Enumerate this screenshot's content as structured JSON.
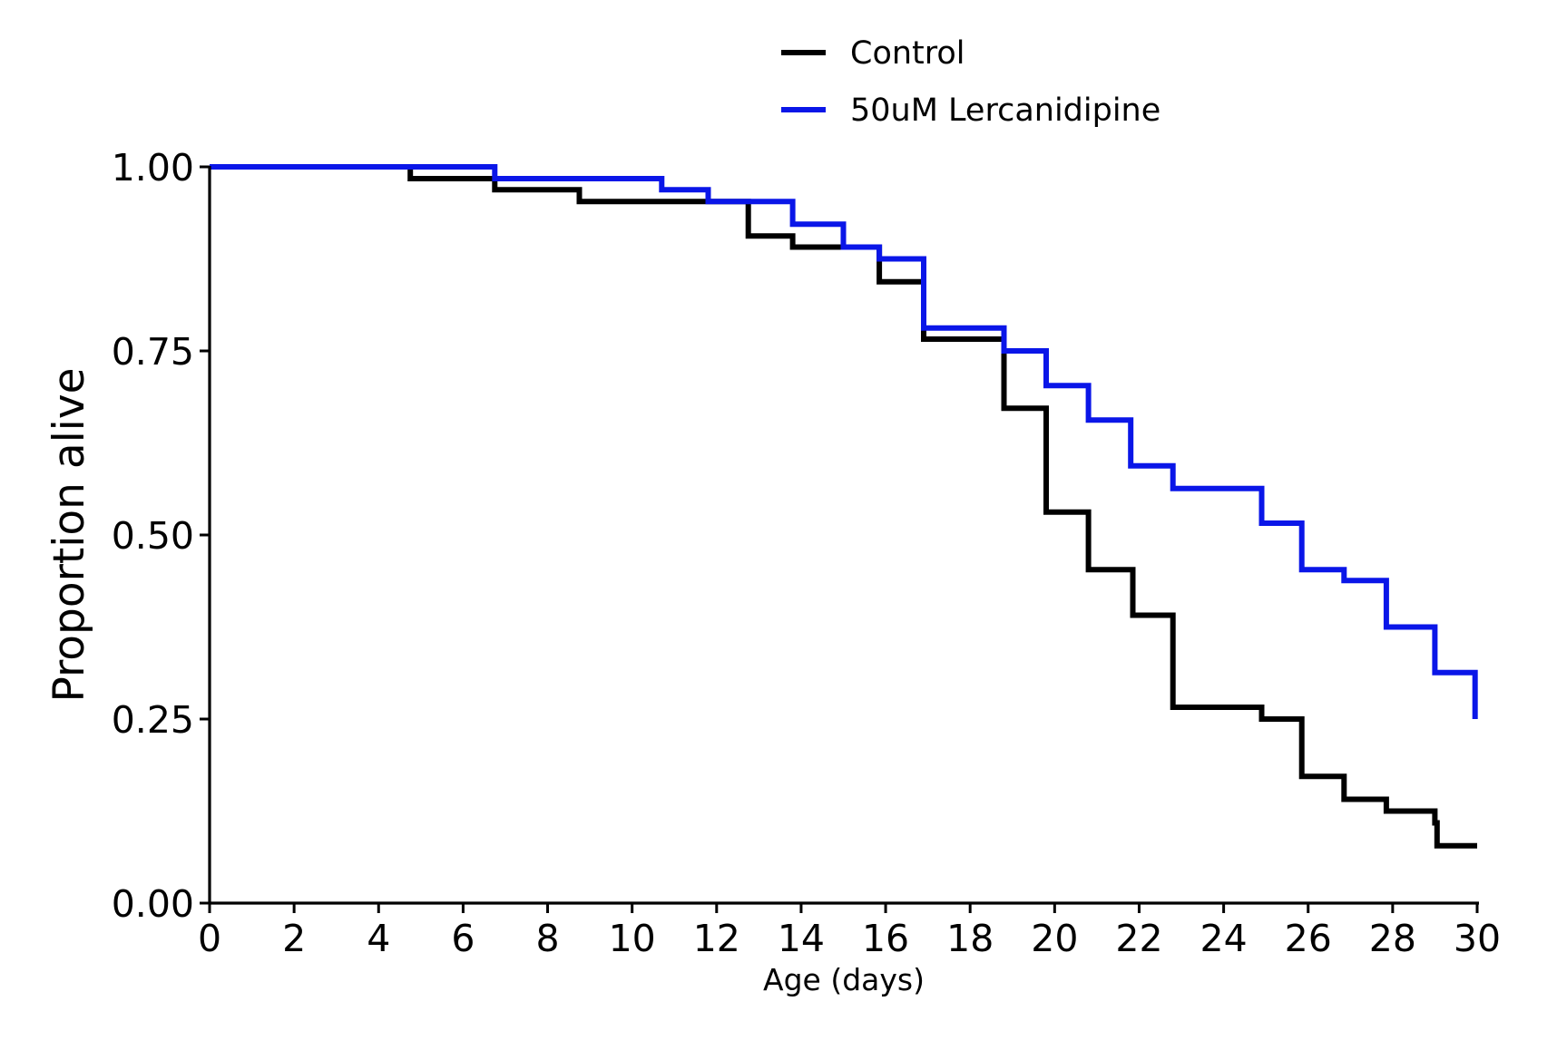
{
  "chart_data": {
    "type": "line",
    "step": "post",
    "xlabel": "Age (days)",
    "ylabel": "Proportion alive",
    "xlim": [
      0,
      30
    ],
    "ylim": [
      0,
      1
    ],
    "xticks": [
      0,
      2,
      4,
      6,
      8,
      10,
      12,
      14,
      16,
      18,
      20,
      22,
      24,
      26,
      28,
      30
    ],
    "xtick_labels": [
      "0",
      "2",
      "4",
      "6",
      "8",
      "10",
      "12",
      "14",
      "16",
      "18",
      "20",
      "22",
      "24",
      "26",
      "28",
      "30"
    ],
    "yticks": [
      0,
      0.25,
      0.5,
      0.75,
      1.0
    ],
    "ytick_labels": [
      "0.00",
      "0.25",
      "0.50",
      "0.75",
      "1.00"
    ],
    "grid": false,
    "legend_position": "top-center",
    "series": [
      {
        "name": "Control",
        "color": "#000000",
        "x": [
          0,
          4.75,
          6.75,
          8.75,
          12.75,
          13.8,
          15.85,
          16.9,
          18.8,
          19.8,
          20.8,
          21.85,
          22.8,
          24.9,
          25.85,
          26.85,
          27.85,
          29.0,
          29.05,
          30.0
        ],
        "y": [
          1.0,
          0.984,
          0.969,
          0.953,
          0.906,
          0.891,
          0.844,
          0.766,
          0.672,
          0.531,
          0.453,
          0.391,
          0.266,
          0.25,
          0.172,
          0.141,
          0.125,
          0.109,
          0.078,
          0.078
        ]
      },
      {
        "name": "50uM Lercanidipine",
        "color": "#0a16e8",
        "x": [
          0,
          6.75,
          10.7,
          11.8,
          13.8,
          15.0,
          15.85,
          16.9,
          18.8,
          19.8,
          20.8,
          21.8,
          22.8,
          24.9,
          25.85,
          26.85,
          27.85,
          29.0,
          29.95
        ],
        "y": [
          1.0,
          0.984,
          0.969,
          0.953,
          0.922,
          0.891,
          0.875,
          0.781,
          0.75,
          0.703,
          0.656,
          0.594,
          0.563,
          0.516,
          0.453,
          0.438,
          0.375,
          0.313,
          0.25
        ]
      }
    ]
  }
}
